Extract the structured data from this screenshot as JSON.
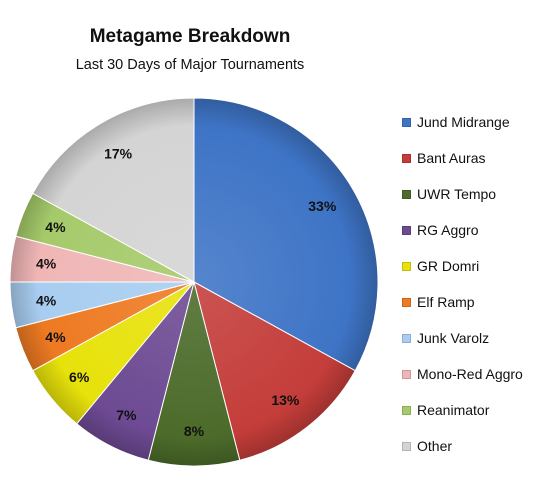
{
  "chart_data": {
    "type": "pie",
    "title": "Metagame Breakdown",
    "subtitle": "Last 30 Days of Major Tournaments",
    "legend_position": "right",
    "slices": [
      {
        "name": "Jund Midrange",
        "value": 33,
        "label": "33%",
        "color": "#3e74c6"
      },
      {
        "name": "Bant Auras",
        "value": 13,
        "label": "13%",
        "color": "#c43d3a"
      },
      {
        "name": "UWR Tempo",
        "value": 8,
        "label": "8%",
        "color": "#4c6b2a"
      },
      {
        "name": "RG Aggro",
        "value": 7,
        "label": "7%",
        "color": "#6d4a93"
      },
      {
        "name": "GR Domri",
        "value": 6,
        "label": "6%",
        "color": "#e7e20a"
      },
      {
        "name": "Elf Ramp",
        "value": 4,
        "label": "4%",
        "color": "#ee7a22"
      },
      {
        "name": "Junk Varolz",
        "value": 4,
        "label": "4%",
        "color": "#a8cdf0"
      },
      {
        "name": "Mono-Red Aggro",
        "value": 4,
        "label": "4%",
        "color": "#f0b6b6"
      },
      {
        "name": "Reanimator",
        "value": 4,
        "label": "4%",
        "color": "#a5ca6a"
      },
      {
        "name": "Other",
        "value": 17,
        "label": "17%",
        "color": "#d4d4d4"
      }
    ]
  }
}
